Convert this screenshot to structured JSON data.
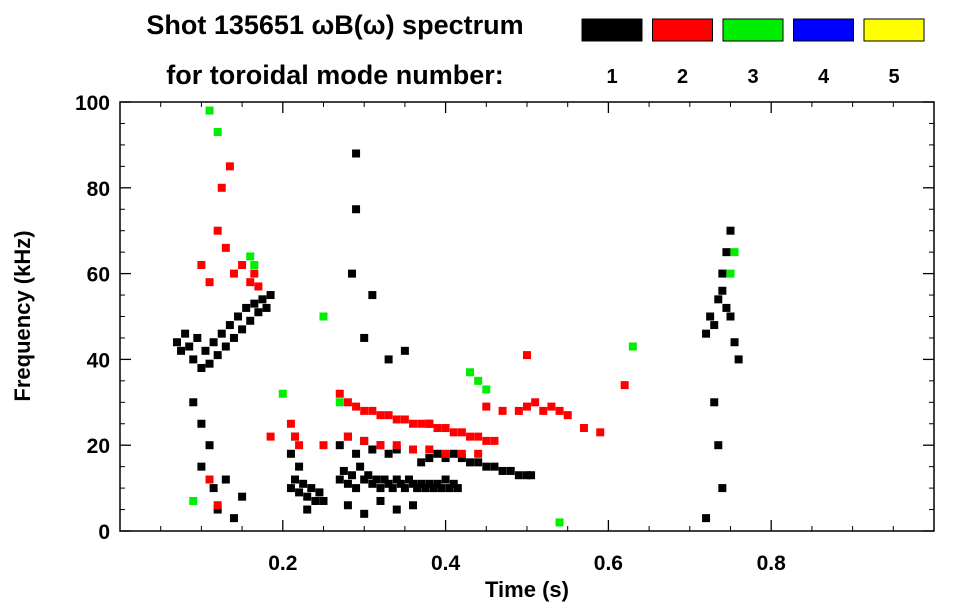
{
  "chart_data": {
    "type": "scatter",
    "title": "Shot 135651 ωB(ω) spectrum",
    "subtitle": "for toroidal mode number:",
    "xlabel": "Time (s)",
    "ylabel": "Frequency (kHz)",
    "xlim": [
      0.0,
      1.0
    ],
    "ylim": [
      0,
      100
    ],
    "x_ticks": [
      0.2,
      0.4,
      0.6,
      0.8
    ],
    "x_tick_labels": [
      "0.2",
      "0.4",
      "0.6",
      "0.8"
    ],
    "y_ticks": [
      0,
      20,
      40,
      60,
      80,
      100
    ],
    "y_tick_labels": [
      "0",
      "20",
      "40",
      "60",
      "80",
      "100"
    ],
    "grid": false,
    "legend_position": "top-right",
    "legend": [
      {
        "label": "1",
        "color": "#000000"
      },
      {
        "label": "2",
        "color": "#ff0000"
      },
      {
        "label": "3",
        "color": "#00ee00"
      },
      {
        "label": "4",
        "color": "#0000ff"
      },
      {
        "label": "5",
        "color": "#ffff00"
      }
    ],
    "series": [
      {
        "mode": 1,
        "color": "#000000",
        "points": [
          [
            0.07,
            44
          ],
          [
            0.075,
            42
          ],
          [
            0.08,
            46
          ],
          [
            0.085,
            43
          ],
          [
            0.09,
            40
          ],
          [
            0.095,
            45
          ],
          [
            0.1,
            38
          ],
          [
            0.105,
            42
          ],
          [
            0.11,
            39
          ],
          [
            0.115,
            44
          ],
          [
            0.12,
            41
          ],
          [
            0.125,
            46
          ],
          [
            0.13,
            43
          ],
          [
            0.135,
            48
          ],
          [
            0.14,
            45
          ],
          [
            0.145,
            50
          ],
          [
            0.15,
            47
          ],
          [
            0.155,
            52
          ],
          [
            0.16,
            49
          ],
          [
            0.165,
            53
          ],
          [
            0.17,
            51
          ],
          [
            0.175,
            54
          ],
          [
            0.18,
            52
          ],
          [
            0.185,
            55
          ],
          [
            0.09,
            30
          ],
          [
            0.1,
            25
          ],
          [
            0.1,
            15
          ],
          [
            0.11,
            20
          ],
          [
            0.115,
            10
          ],
          [
            0.12,
            5
          ],
          [
            0.13,
            12
          ],
          [
            0.14,
            3
          ],
          [
            0.15,
            8
          ],
          [
            0.21,
            10
          ],
          [
            0.215,
            12
          ],
          [
            0.22,
            9
          ],
          [
            0.225,
            11
          ],
          [
            0.23,
            8
          ],
          [
            0.235,
            10
          ],
          [
            0.24,
            7
          ],
          [
            0.245,
            9
          ],
          [
            0.25,
            7
          ],
          [
            0.21,
            18
          ],
          [
            0.22,
            15
          ],
          [
            0.215,
            22
          ],
          [
            0.23,
            5
          ],
          [
            0.27,
            12
          ],
          [
            0.275,
            14
          ],
          [
            0.28,
            11
          ],
          [
            0.285,
            13
          ],
          [
            0.29,
            10
          ],
          [
            0.295,
            15
          ],
          [
            0.3,
            12
          ],
          [
            0.305,
            13
          ],
          [
            0.31,
            11
          ],
          [
            0.315,
            12
          ],
          [
            0.32,
            10
          ],
          [
            0.325,
            12
          ],
          [
            0.33,
            11
          ],
          [
            0.335,
            10
          ],
          [
            0.34,
            12
          ],
          [
            0.345,
            11
          ],
          [
            0.35,
            10
          ],
          [
            0.355,
            12
          ],
          [
            0.36,
            11
          ],
          [
            0.365,
            10
          ],
          [
            0.37,
            11
          ],
          [
            0.375,
            10
          ],
          [
            0.38,
            11
          ],
          [
            0.385,
            10
          ],
          [
            0.39,
            11
          ],
          [
            0.395,
            10
          ],
          [
            0.4,
            12
          ],
          [
            0.405,
            10
          ],
          [
            0.41,
            11
          ],
          [
            0.415,
            10
          ],
          [
            0.27,
            20
          ],
          [
            0.28,
            22
          ],
          [
            0.29,
            18
          ],
          [
            0.3,
            21
          ],
          [
            0.31,
            19
          ],
          [
            0.32,
            20
          ],
          [
            0.33,
            18
          ],
          [
            0.34,
            19
          ],
          [
            0.28,
            6
          ],
          [
            0.3,
            4
          ],
          [
            0.32,
            7
          ],
          [
            0.34,
            5
          ],
          [
            0.36,
            6
          ],
          [
            0.37,
            16
          ],
          [
            0.38,
            17
          ],
          [
            0.39,
            18
          ],
          [
            0.4,
            17
          ],
          [
            0.41,
            18
          ],
          [
            0.42,
            17
          ],
          [
            0.43,
            16
          ],
          [
            0.44,
            16
          ],
          [
            0.45,
            15
          ],
          [
            0.46,
            15
          ],
          [
            0.47,
            14
          ],
          [
            0.48,
            14
          ],
          [
            0.49,
            13
          ],
          [
            0.5,
            13
          ],
          [
            0.505,
            13
          ],
          [
            0.285,
            60
          ],
          [
            0.29,
            75
          ],
          [
            0.29,
            88
          ],
          [
            0.3,
            45
          ],
          [
            0.31,
            55
          ],
          [
            0.33,
            40
          ],
          [
            0.35,
            42
          ],
          [
            0.38,
            25
          ],
          [
            0.72,
            46
          ],
          [
            0.725,
            50
          ],
          [
            0.73,
            48
          ],
          [
            0.735,
            54
          ],
          [
            0.74,
            56
          ],
          [
            0.745,
            52
          ],
          [
            0.75,
            50
          ],
          [
            0.755,
            44
          ],
          [
            0.76,
            40
          ],
          [
            0.74,
            60
          ],
          [
            0.745,
            65
          ],
          [
            0.75,
            70
          ],
          [
            0.73,
            30
          ],
          [
            0.735,
            20
          ],
          [
            0.74,
            10
          ],
          [
            0.72,
            3
          ]
        ]
      },
      {
        "mode": 2,
        "color": "#ff0000",
        "points": [
          [
            0.1,
            62
          ],
          [
            0.11,
            58
          ],
          [
            0.12,
            70
          ],
          [
            0.125,
            80
          ],
          [
            0.13,
            66
          ],
          [
            0.14,
            60
          ],
          [
            0.15,
            62
          ],
          [
            0.16,
            58
          ],
          [
            0.165,
            60
          ],
          [
            0.17,
            57
          ],
          [
            0.135,
            85
          ],
          [
            0.11,
            12
          ],
          [
            0.12,
            6
          ],
          [
            0.21,
            25
          ],
          [
            0.215,
            22
          ],
          [
            0.22,
            20
          ],
          [
            0.25,
            20
          ],
          [
            0.185,
            22
          ],
          [
            0.27,
            32
          ],
          [
            0.28,
            30
          ],
          [
            0.29,
            29
          ],
          [
            0.3,
            28
          ],
          [
            0.31,
            28
          ],
          [
            0.32,
            27
          ],
          [
            0.33,
            27
          ],
          [
            0.34,
            26
          ],
          [
            0.35,
            26
          ],
          [
            0.36,
            25
          ],
          [
            0.37,
            25
          ],
          [
            0.38,
            25
          ],
          [
            0.39,
            24
          ],
          [
            0.4,
            24
          ],
          [
            0.41,
            23
          ],
          [
            0.42,
            23
          ],
          [
            0.43,
            22
          ],
          [
            0.44,
            22
          ],
          [
            0.45,
            21
          ],
          [
            0.46,
            21
          ],
          [
            0.28,
            22
          ],
          [
            0.3,
            21
          ],
          [
            0.32,
            20
          ],
          [
            0.34,
            20
          ],
          [
            0.36,
            19
          ],
          [
            0.38,
            19
          ],
          [
            0.4,
            18
          ],
          [
            0.42,
            18
          ],
          [
            0.44,
            18
          ],
          [
            0.45,
            29
          ],
          [
            0.47,
            28
          ],
          [
            0.49,
            28
          ],
          [
            0.5,
            29
          ],
          [
            0.51,
            30
          ],
          [
            0.52,
            28
          ],
          [
            0.53,
            29
          ],
          [
            0.54,
            28
          ],
          [
            0.55,
            27
          ],
          [
            0.57,
            24
          ],
          [
            0.59,
            23
          ],
          [
            0.62,
            34
          ],
          [
            0.5,
            41
          ]
        ]
      },
      {
        "mode": 3,
        "color": "#00ee00",
        "points": [
          [
            0.11,
            98
          ],
          [
            0.12,
            93
          ],
          [
            0.16,
            64
          ],
          [
            0.165,
            62
          ],
          [
            0.2,
            32
          ],
          [
            0.27,
            30
          ],
          [
            0.25,
            50
          ],
          [
            0.43,
            37
          ],
          [
            0.44,
            35
          ],
          [
            0.45,
            33
          ],
          [
            0.54,
            2
          ],
          [
            0.75,
            60
          ],
          [
            0.755,
            65
          ],
          [
            0.63,
            43
          ],
          [
            0.09,
            7
          ]
        ]
      }
    ]
  }
}
